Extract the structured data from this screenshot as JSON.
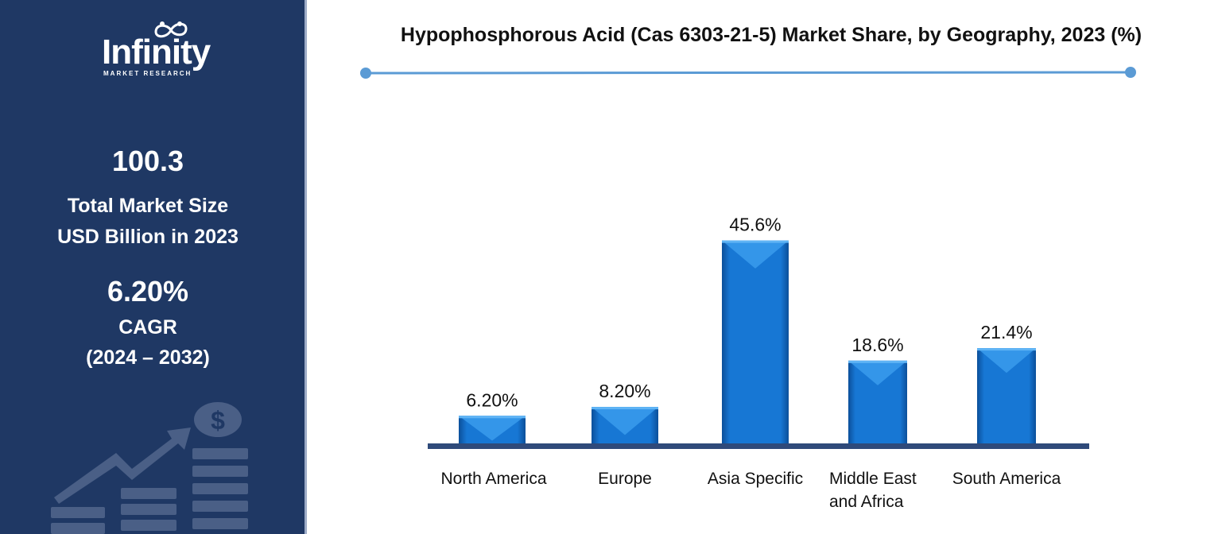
{
  "sidebar": {
    "logo_text": "Infinity",
    "logo_subtext": "MARKET RESEARCH",
    "market_size_value": "100.3",
    "market_size_label_line1": "Total Market Size",
    "market_size_label_line2": "USD Billion in 2023",
    "cagr_value": "6.20%",
    "cagr_label": "CAGR",
    "cagr_period": "(2024 – 2032)"
  },
  "colors": {
    "sidebar_bg": "#1f3864",
    "bar_fill": "#1777d4",
    "bar_highlight": "#3fa0f0",
    "baseline": "#2f4a7a",
    "title_rule": "#5b9bd5"
  },
  "chart_data": {
    "type": "bar",
    "title": "Hypophosphorous Acid (Cas 6303-21-5) Market Share, by Geography, 2023 (%)",
    "categories": [
      "North America",
      "Europe",
      "Asia Specific",
      "Middle East and Africa",
      "South America"
    ],
    "category_lines": [
      [
        "North America"
      ],
      [
        "Europe"
      ],
      [
        "Asia Specific"
      ],
      [
        "Middle East",
        "and Africa"
      ],
      [
        "South America"
      ]
    ],
    "values": [
      6.2,
      8.2,
      45.6,
      18.6,
      21.4
    ],
    "data_labels": [
      "6.20%",
      "8.20%",
      "45.6%",
      "18.6%",
      "21.4%"
    ],
    "xlabel": "",
    "ylabel": "",
    "ylim": [
      0,
      50
    ],
    "grid": false,
    "legend": "none"
  }
}
